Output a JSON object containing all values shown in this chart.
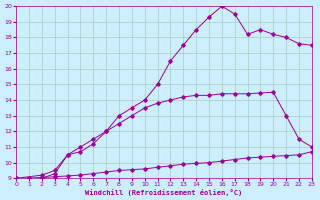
{
  "xlabel": "Windchill (Refroidissement éolien,°C)",
  "bg_color": "#cceeff",
  "line_color": "#990099",
  "grid_color": "#aaccbb",
  "xlim": [
    0,
    23
  ],
  "ylim": [
    9,
    20
  ],
  "xticks": [
    0,
    1,
    2,
    3,
    4,
    5,
    6,
    7,
    8,
    9,
    10,
    11,
    12,
    13,
    14,
    15,
    16,
    17,
    18,
    19,
    20,
    21,
    22,
    23
  ],
  "yticks": [
    9,
    10,
    11,
    12,
    13,
    14,
    15,
    16,
    17,
    18,
    19,
    20
  ],
  "line1_x": [
    0,
    1,
    2,
    3,
    4,
    5,
    6,
    7,
    8,
    9,
    10,
    11,
    12,
    13,
    14,
    15,
    16,
    17,
    18,
    19,
    20,
    21,
    22,
    23
  ],
  "line1_y": [
    9.0,
    9.0,
    9.05,
    9.1,
    9.15,
    9.2,
    9.3,
    9.4,
    9.5,
    9.55,
    9.6,
    9.7,
    9.8,
    9.9,
    9.95,
    10.0,
    10.1,
    10.2,
    10.3,
    10.35,
    10.4,
    10.45,
    10.5,
    10.7
  ],
  "line2_x": [
    0,
    2,
    3,
    4,
    5,
    6,
    7,
    8,
    9,
    10,
    11,
    12,
    13,
    14,
    15,
    16,
    17,
    18,
    19,
    20,
    21,
    22,
    23
  ],
  "line2_y": [
    9.0,
    9.2,
    9.5,
    10.5,
    11.0,
    11.5,
    12.0,
    12.5,
    13.0,
    13.5,
    13.8,
    14.0,
    14.2,
    14.3,
    14.3,
    14.4,
    14.4,
    14.4,
    14.45,
    14.5,
    13.0,
    11.5,
    11.0
  ],
  "line3_x": [
    0,
    1,
    2,
    3,
    4,
    5,
    6,
    7,
    8,
    9,
    10,
    11,
    12,
    13,
    14,
    15,
    16,
    17,
    18,
    19,
    20,
    21,
    22,
    23
  ],
  "line3_y": [
    9.0,
    9.0,
    9.0,
    9.3,
    10.5,
    10.7,
    11.2,
    12.0,
    13.0,
    13.5,
    14.0,
    15.0,
    16.5,
    17.5,
    18.5,
    19.3,
    20.0,
    19.5,
    18.2,
    18.5,
    18.2,
    18.0,
    17.6,
    17.5
  ]
}
